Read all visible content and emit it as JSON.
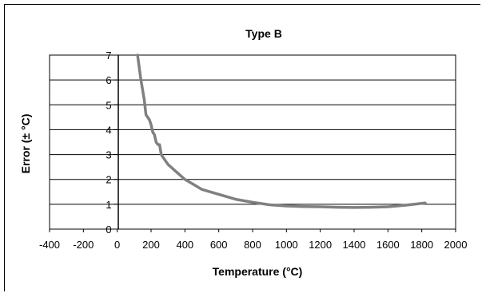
{
  "chart_data": {
    "type": "line",
    "title": "Type B",
    "xlabel": "Temperature (°C)",
    "ylabel": "Error (± °C)",
    "xlim": [
      -400,
      2000
    ],
    "ylim": [
      0,
      7
    ],
    "x_ticks": [
      -400,
      -200,
      0,
      200,
      400,
      600,
      800,
      1000,
      1200,
      1400,
      1600,
      1800,
      2000
    ],
    "y_ticks": [
      0,
      1,
      2,
      3,
      4,
      5,
      6,
      7
    ],
    "grid": "horizontal",
    "legend": "none",
    "series": [
      {
        "color": "#808080",
        "x": [
          120,
          130,
          140,
          150,
          160,
          170,
          180,
          190,
          200,
          210,
          220,
          230,
          240,
          250,
          260,
          280,
          300,
          350,
          400,
          450,
          500,
          600,
          700,
          800,
          900,
          1000,
          1100,
          1200,
          1300,
          1400,
          1500,
          1600,
          1700,
          1820
        ],
        "y": [
          7.0,
          6.5,
          6.0,
          5.6,
          5.2,
          4.6,
          4.5,
          4.4,
          4.2,
          3.9,
          3.8,
          3.5,
          3.4,
          3.4,
          3.0,
          2.8,
          2.6,
          2.3,
          2.0,
          1.8,
          1.6,
          1.4,
          1.2,
          1.08,
          0.98,
          0.93,
          0.91,
          0.9,
          0.88,
          0.87,
          0.88,
          0.9,
          0.96,
          1.05
        ]
      }
    ]
  }
}
